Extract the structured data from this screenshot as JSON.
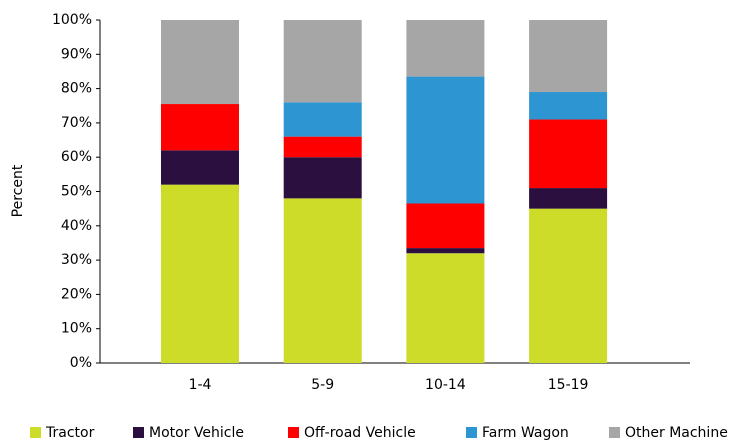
{
  "chart_data": {
    "type": "stacked_bar",
    "y_label": "Percent",
    "categories": [
      "1-4",
      "5-9",
      "10-14",
      "15-19"
    ],
    "series": [
      {
        "name": "Tractor",
        "color": "#cddc29",
        "values": [
          52,
          48,
          32,
          45
        ]
      },
      {
        "name": "Motor Vehicle",
        "color": "#2a0f3f",
        "values": [
          10,
          12,
          1.5,
          6
        ]
      },
      {
        "name": "Off-road Vehicle",
        "color": "#ff0000",
        "values": [
          13.5,
          6,
          13,
          20
        ]
      },
      {
        "name": "Farm Wagon",
        "color": "#2e95d3",
        "values": [
          0,
          10,
          37,
          8
        ]
      },
      {
        "name": "Other Machine",
        "color": "#a6a6a6",
        "values": [
          24.5,
          24,
          16.5,
          21
        ]
      }
    ],
    "ylim": [
      0,
      100
    ],
    "yticks": [
      {
        "value": 0,
        "label": "0%"
      },
      {
        "value": 10,
        "label": "10%"
      },
      {
        "value": 20,
        "label": "20%"
      },
      {
        "value": 30,
        "label": "30%"
      },
      {
        "value": 40,
        "label": "40%"
      },
      {
        "value": 50,
        "label": "50%"
      },
      {
        "value": 60,
        "label": "60%"
      },
      {
        "value": 70,
        "label": "70%"
      },
      {
        "value": 80,
        "label": "80%"
      },
      {
        "value": 90,
        "label": "90%"
      },
      {
        "value": 100,
        "label": "100%"
      }
    ],
    "legend": "bottom",
    "grid": false
  }
}
